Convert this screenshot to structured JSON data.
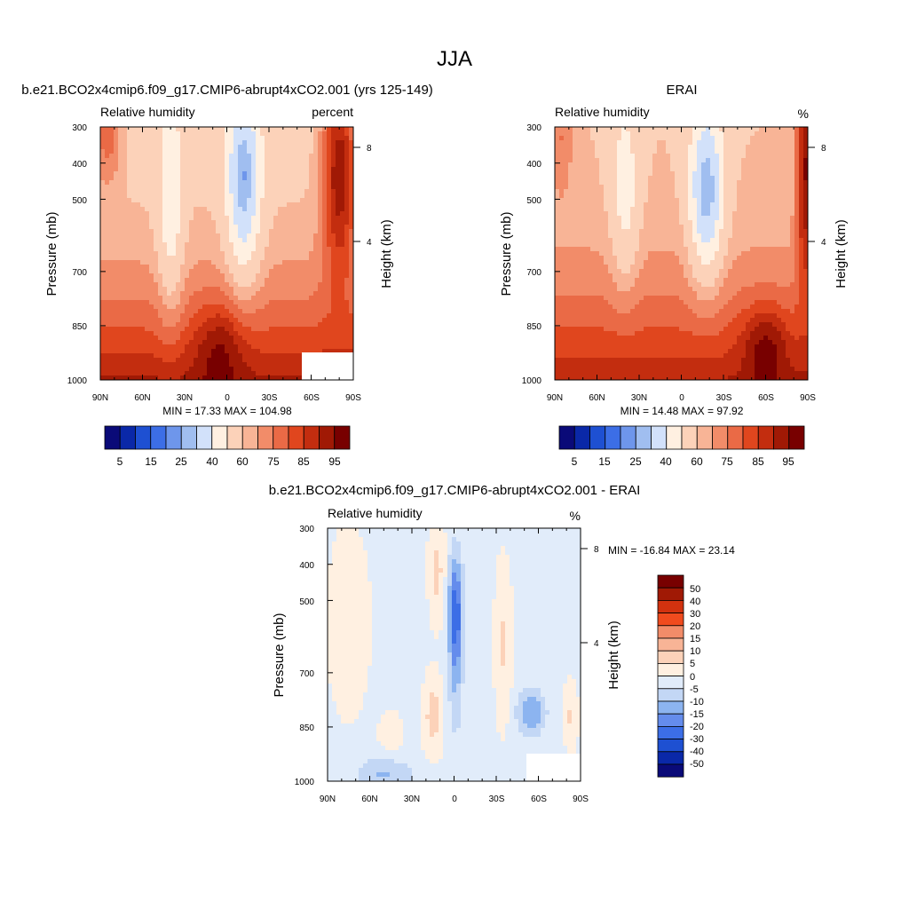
{
  "page_title": "JJA",
  "chart_data": [
    {
      "type": "heatmap",
      "title": "b.e21.BCO2x4cmip6.f09_g17.CMIP6-abrupt4xCO2.001 (yrs 125-149)",
      "left_subtitle": "Relative humidity",
      "right_subtitle": "percent",
      "ylabel": "Pressure (mb)",
      "ylabel_right": "Height (km)",
      "x_ticks": [
        "90N",
        "60N",
        "30N",
        "0",
        "30S",
        "60S",
        "90S"
      ],
      "y_ticks": [
        "300",
        "400",
        "500",
        "700",
        "850",
        "1000"
      ],
      "y_ticks_right": [
        "8",
        "4"
      ],
      "xlim": [
        90,
        -90
      ],
      "ylim": [
        1000,
        300
      ],
      "stats": "MIN =  17.33  MAX = 104.98",
      "legend_placement": "bottom",
      "colorbar_labels": [
        "5",
        "15",
        "25",
        "40",
        "60",
        "75",
        "85",
        "95"
      ],
      "colorbar_colors": [
        "#0a0a78",
        "#0a28a8",
        "#1e50d2",
        "#3c6ee6",
        "#6e96eb",
        "#a0bef0",
        "#d2e1fa",
        "#fff0e1",
        "#fcd2b9",
        "#f8b496",
        "#f28c69",
        "#ea6a46",
        "#e0461e",
        "#c32d0f",
        "#a01905",
        "#780000"
      ],
      "levels": [
        5,
        10,
        15,
        20,
        25,
        30,
        40,
        50,
        60,
        65,
        70,
        75,
        80,
        85,
        90,
        95
      ]
    },
    {
      "type": "heatmap",
      "title": "ERAI",
      "left_subtitle": "Relative humidity",
      "right_subtitle": "%",
      "ylabel": "Pressure (mb)",
      "ylabel_right": "Height (km)",
      "x_ticks": [
        "90N",
        "60N",
        "30N",
        "0",
        "30S",
        "60S",
        "90S"
      ],
      "y_ticks": [
        "300",
        "400",
        "500",
        "700",
        "850",
        "1000"
      ],
      "y_ticks_right": [
        "8",
        "4"
      ],
      "xlim": [
        90,
        -90
      ],
      "ylim": [
        1000,
        300
      ],
      "stats": "MIN =  14.48  MAX =  97.92",
      "legend_placement": "bottom",
      "colorbar_labels": [
        "5",
        "15",
        "25",
        "40",
        "60",
        "75",
        "85",
        "95"
      ],
      "colorbar_colors": [
        "#0a0a78",
        "#0a28a8",
        "#1e50d2",
        "#3c6ee6",
        "#6e96eb",
        "#a0bef0",
        "#d2e1fa",
        "#fff0e1",
        "#fcd2b9",
        "#f8b496",
        "#f28c69",
        "#ea6a46",
        "#e0461e",
        "#c32d0f",
        "#a01905",
        "#780000"
      ],
      "levels": [
        5,
        10,
        15,
        20,
        25,
        30,
        40,
        50,
        60,
        65,
        70,
        75,
        80,
        85,
        90,
        95
      ]
    },
    {
      "type": "heatmap",
      "title": "b.e21.BCO2x4cmip6.f09_g17.CMIP6-abrupt4xCO2.001 - ERAI",
      "left_subtitle": "Relative humidity",
      "right_subtitle": "%",
      "ylabel": "Pressure (mb)",
      "ylabel_right": "Height (km)",
      "x_ticks": [
        "90N",
        "60N",
        "30N",
        "0",
        "30S",
        "60S",
        "90S"
      ],
      "y_ticks": [
        "300",
        "400",
        "500",
        "700",
        "850",
        "1000"
      ],
      "y_ticks_right": [
        "8",
        "4"
      ],
      "xlim": [
        90,
        -90
      ],
      "ylim": [
        1000,
        300
      ],
      "stats": "MIN = -16.84  MAX =  23.14",
      "legend_placement": "right",
      "colorbar_labels": [
        "50",
        "40",
        "30",
        "20",
        "15",
        "10",
        "5",
        "0",
        "-5",
        "-10",
        "-15",
        "-20",
        "-30",
        "-40",
        "-50"
      ],
      "colorbar_colors": [
        "#780000",
        "#a01905",
        "#d2320f",
        "#f04b1e",
        "#f28c69",
        "#f8b496",
        "#fcd2b9",
        "#fff0e1",
        "#e1ecfa",
        "#c3d7f5",
        "#8cb4f0",
        "#648cec",
        "#3c6ee6",
        "#1e50d2",
        "#0a28a8",
        "#0a0a78"
      ],
      "levels": [
        -50,
        -40,
        -30,
        -20,
        -15,
        -10,
        -5,
        0,
        5,
        10,
        15,
        20,
        30,
        40,
        50
      ]
    }
  ]
}
